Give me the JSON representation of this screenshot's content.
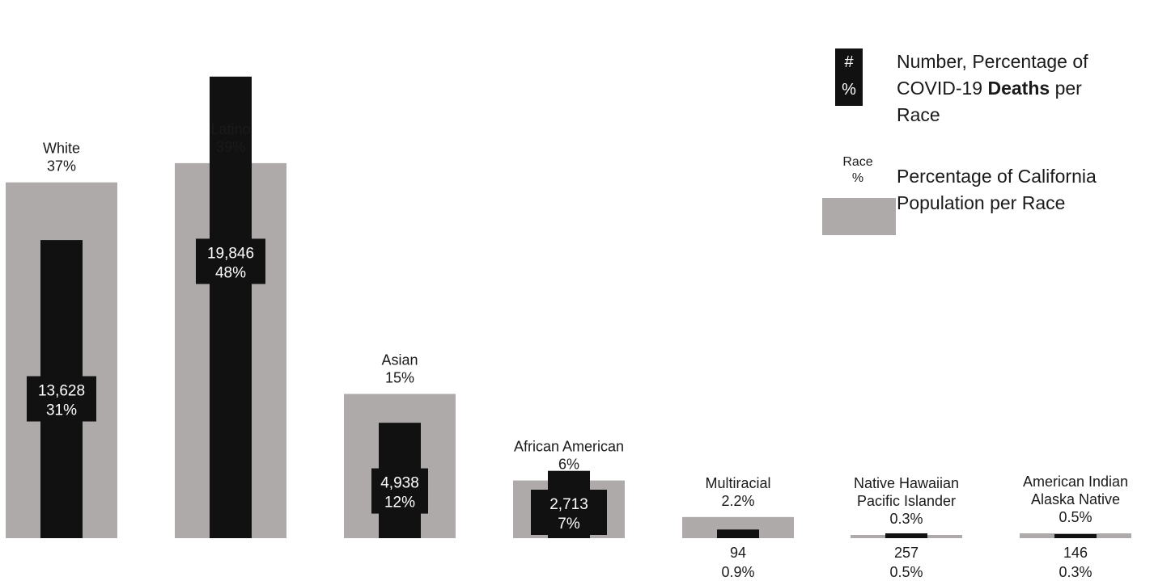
{
  "chart_data": {
    "type": "bar",
    "title": "",
    "xlabel": "",
    "ylabel": "",
    "ylim": [
      0,
      50
    ],
    "categories": [
      [
        "White"
      ],
      [
        "Latino"
      ],
      [
        "Asian"
      ],
      [
        "African American"
      ],
      [
        "Multiracial"
      ],
      [
        "Native Hawaiian",
        "Pacific Islander"
      ],
      [
        "American Indian",
        "Alaska Native"
      ]
    ],
    "series": [
      {
        "name": "Percentage of California Population per Race",
        "values": [
          37,
          39,
          15,
          6,
          2.2,
          0.3,
          0.5
        ],
        "labels": [
          "37%",
          "39%",
          "15%",
          "6%",
          "2.2%",
          "0.3%",
          "0.5%"
        ],
        "color": "#aeaaaa"
      },
      {
        "name": "Number, Percentage of COVID-19 Deaths per Race",
        "counts": [
          13628,
          19846,
          4938,
          2713,
          94,
          257,
          146
        ],
        "values": [
          31,
          48,
          12,
          7,
          0.9,
          0.5,
          0.3
        ],
        "count_labels": [
          "13,628",
          "19,846",
          "4,938",
          "2,713",
          "94",
          "257",
          "146"
        ],
        "labels": [
          "31%",
          "48%",
          "12%",
          "7%",
          "0.9%",
          "0.5%",
          "0.3%"
        ],
        "color": "#111111"
      }
    ]
  },
  "legend": {
    "deaths_symbol_top": "#",
    "deaths_symbol_bottom": "%",
    "deaths_line1": "Number, Percentage of",
    "deaths_line2_pre": "COVID-19 ",
    "deaths_line2_bold": "Deaths",
    "deaths_line2_post": " per",
    "deaths_line3": "Race",
    "pop_symbol_top": "Race",
    "pop_symbol_bottom": "%",
    "pop_line1": "Percentage of California",
    "pop_line2": "Population per Race"
  }
}
